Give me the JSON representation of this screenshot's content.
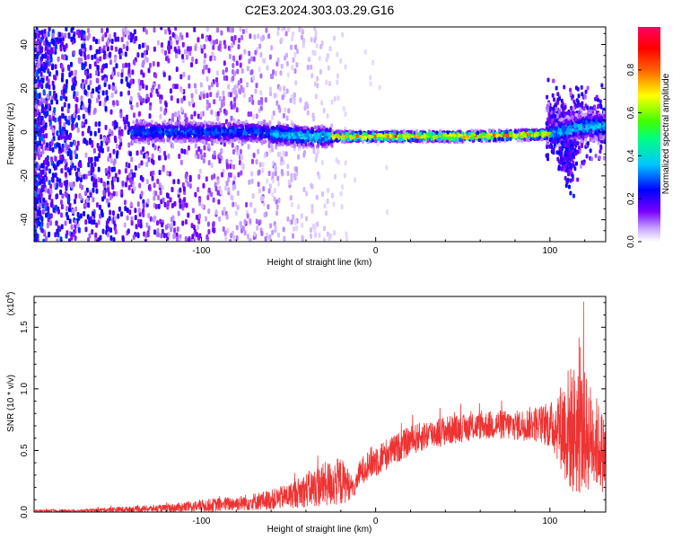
{
  "chart_data": [
    {
      "type": "heatmap",
      "title": "C2E3.2024.303.03.29.G16",
      "xlabel": "Height of straight line (km)",
      "ylabel": "Frequency (Hz)",
      "xlim": [
        -196,
        132
      ],
      "ylim": [
        -50,
        48
      ],
      "x_ticks": [
        -100,
        0,
        100
      ],
      "x_tick_labels": [
        "-100",
        "0",
        "100"
      ],
      "y_ticks": [
        -40,
        -20,
        0,
        20,
        40
      ],
      "y_tick_labels": [
        "-40",
        "-20",
        "0",
        "20",
        "40"
      ],
      "colorbar": {
        "label": "Normalized spectral amplitude",
        "range": [
          0,
          1
        ],
        "ticks": [
          0.0,
          0.2,
          0.4,
          0.6,
          0.8
        ],
        "tick_labels": [
          "0.0",
          "0.2",
          "0.4",
          "0.6",
          "0.8"
        ],
        "colormap": "rainbow (white-purple-blue-cyan-green-yellow-red-magenta)"
      },
      "description_of_features": {
        "noise_region_x": [
          -196,
          -30
        ],
        "ridge_region_x": [
          -130,
          100
        ],
        "ridge_center_frequency_hz": [
          {
            "x": -130,
            "y": 0
          },
          {
            "x": -70,
            "y": 0
          },
          {
            "x": -40,
            "y": -2
          },
          {
            "x": -25,
            "y": -2
          },
          {
            "x": 0,
            "y": -2
          },
          {
            "x": 50,
            "y": -2
          },
          {
            "x": 100,
            "y": -1
          },
          {
            "x": 115,
            "y": 2
          },
          {
            "x": 132,
            "y": 3
          }
        ],
        "peak_amplitude_region_x": [
          -20,
          100
        ],
        "spike_near_x": 110
      }
    },
    {
      "type": "line",
      "xlabel": "Height of straight line (km)",
      "ylabel": "SNR (10 * v/v)",
      "y_multiplier_label": "(x10^4)",
      "y_multiplier_base": "(x10",
      "y_multiplier_exp": "4",
      "xlim": [
        -196,
        132
      ],
      "ylim": [
        0,
        1.75
      ],
      "x_ticks": [
        -100,
        0,
        100
      ],
      "x_tick_labels": [
        "-100",
        "0",
        "100"
      ],
      "y_ticks": [
        0.0,
        0.5,
        1.0,
        1.5
      ],
      "y_tick_labels": [
        "0.0",
        "0.5",
        "1.0",
        "1.5"
      ],
      "line_color": "#ee3333",
      "series": [
        {
          "envelope_x": [
            -196,
            -170,
            -150,
            -120,
            -100,
            -80,
            -60,
            -50,
            -40,
            -30,
            -20,
            -15,
            -12,
            -10,
            -5,
            0,
            10,
            20,
            30,
            40,
            50,
            60,
            70,
            80,
            90,
            100,
            105,
            110,
            115,
            120,
            125,
            132
          ],
          "envelope_mean": [
            0.01,
            0.01,
            0.02,
            0.03,
            0.05,
            0.07,
            0.1,
            0.13,
            0.18,
            0.22,
            0.25,
            0.22,
            0.18,
            0.3,
            0.38,
            0.42,
            0.5,
            0.58,
            0.63,
            0.66,
            0.68,
            0.7,
            0.71,
            0.7,
            0.72,
            0.7,
            0.7,
            0.68,
            0.66,
            0.64,
            0.6,
            0.45
          ],
          "envelope_spread": [
            0.01,
            0.01,
            0.02,
            0.03,
            0.05,
            0.06,
            0.08,
            0.1,
            0.14,
            0.18,
            0.2,
            0.12,
            0.05,
            0.1,
            0.12,
            0.14,
            0.12,
            0.12,
            0.12,
            0.12,
            0.11,
            0.11,
            0.12,
            0.12,
            0.14,
            0.18,
            0.3,
            0.5,
            0.55,
            0.5,
            0.4,
            0.3
          ]
        }
      ]
    }
  ],
  "colors": {
    "snr_line": "#ee3333",
    "axes": "#000000",
    "background": "#ffffff"
  }
}
